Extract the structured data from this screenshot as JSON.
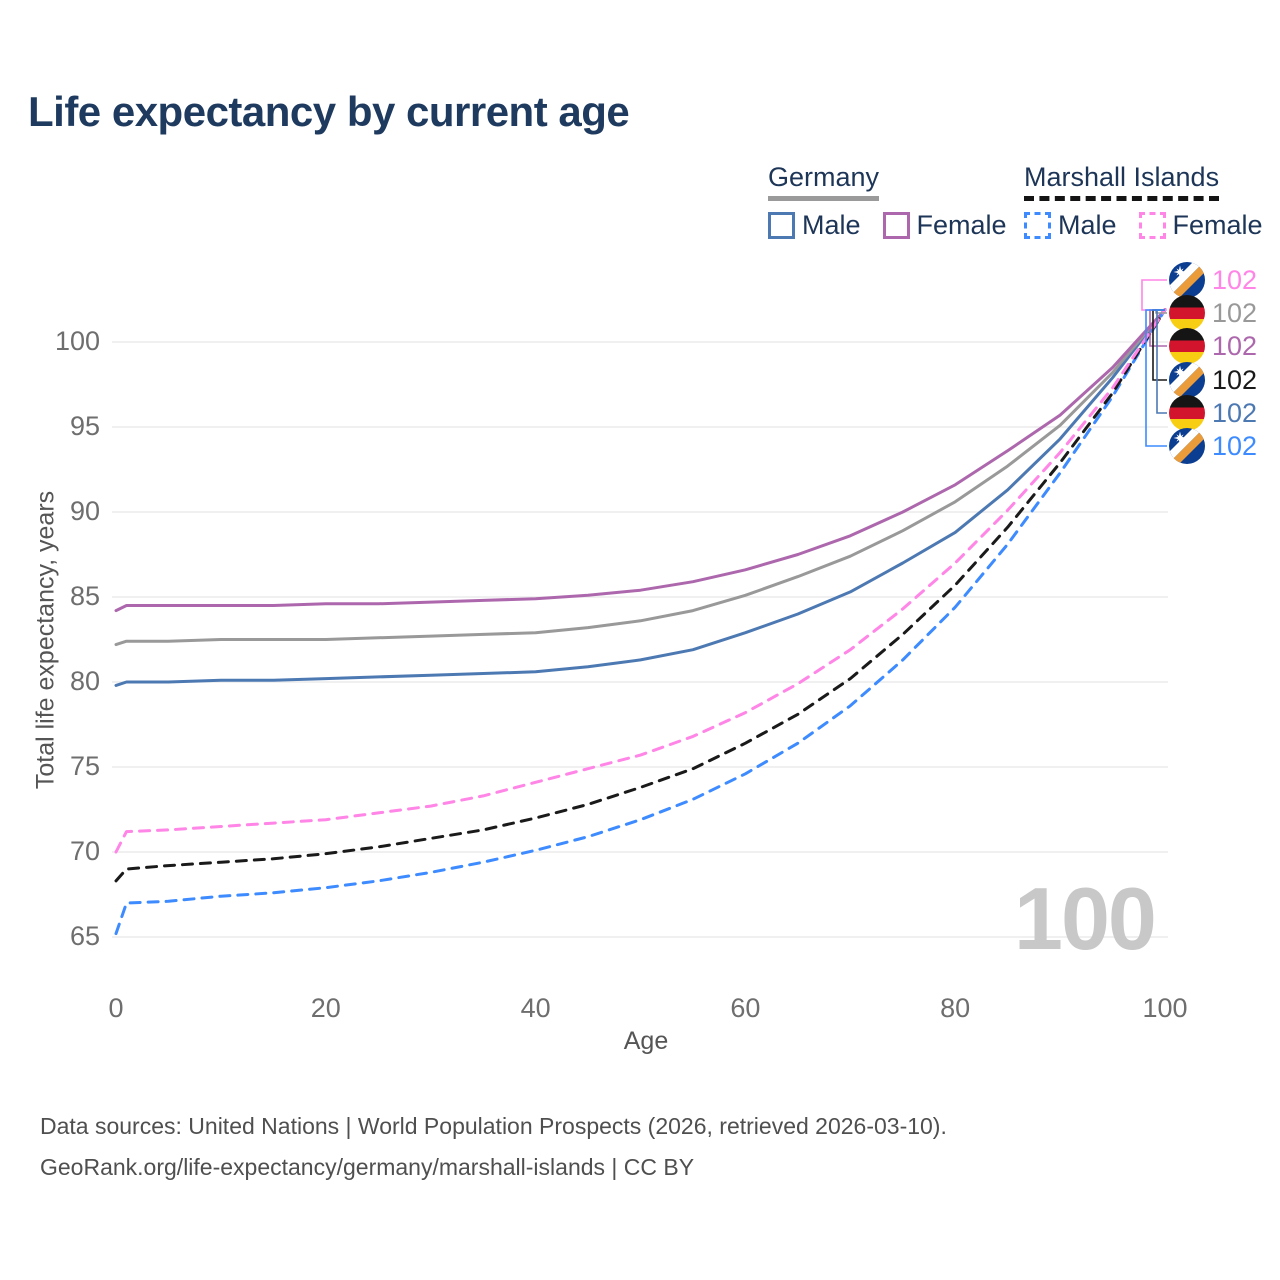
{
  "title": "Life expectancy by current age",
  "legend": {
    "groups": [
      {
        "label": "Germany",
        "line_style": "solid",
        "underline_color": "#9a9a9a",
        "items": [
          {
            "label": "Male",
            "color": "#4d79b3"
          },
          {
            "label": "Female",
            "color": "#ad68ad"
          }
        ]
      },
      {
        "label": "Marshall Islands",
        "line_style": "dashed",
        "underline_color": "#141414",
        "items": [
          {
            "label": "Male",
            "color": "#3d8bff"
          },
          {
            "label": "Female",
            "color": "#ff85e6"
          }
        ]
      }
    ]
  },
  "axes": {
    "x_label": "Age",
    "y_label": "Total life expectancy, years",
    "x_ticks": [
      0,
      20,
      40,
      60,
      80,
      100
    ],
    "y_ticks": [
      65,
      70,
      75,
      80,
      85,
      90,
      95,
      100
    ]
  },
  "watermark": "100",
  "end_labels": [
    {
      "country": "Marshall Islands",
      "series": "Female",
      "value": "102",
      "color": "#ff85e6",
      "flag": "mh"
    },
    {
      "country": "Germany",
      "series": "Both sexes",
      "value": "102",
      "color": "#999999",
      "flag": "de"
    },
    {
      "country": "Germany",
      "series": "Female",
      "value": "102",
      "color": "#ad68ad",
      "flag": "de"
    },
    {
      "country": "Marshall Islands",
      "series": "Both sexes",
      "value": "102",
      "color": "#1a1a1a",
      "flag": "mh"
    },
    {
      "country": "Germany",
      "series": "Male",
      "value": "102",
      "color": "#4d79b3",
      "flag": "de"
    },
    {
      "country": "Marshall Islands",
      "series": "Male",
      "value": "102",
      "color": "#3d8bff",
      "flag": "mh"
    }
  ],
  "footer": {
    "line1": "Data sources: United Nations | World Population Prospects (2026, retrieved 2026-03-10).",
    "line2": "GeoRank.org/life-expectancy/germany/marshall-islands | CC BY"
  },
  "chart_data": {
    "type": "line",
    "title": "Life expectancy by current age",
    "xlabel": "Age",
    "ylabel": "Total life expectancy, years",
    "xlim": [
      0,
      100
    ],
    "ylim": [
      63.5,
      103.5
    ],
    "grid": "horizontal",
    "legend_position": "top-right",
    "x": [
      0,
      1,
      5,
      10,
      15,
      20,
      25,
      30,
      35,
      40,
      45,
      50,
      55,
      60,
      65,
      70,
      75,
      80,
      85,
      90,
      95,
      100
    ],
    "series": [
      {
        "name": "Germany Male",
        "color": "#4d79b3",
        "dash": "solid",
        "values": [
          79.8,
          80.0,
          80.0,
          80.1,
          80.1,
          80.2,
          80.3,
          80.4,
          80.5,
          80.6,
          80.9,
          81.3,
          81.9,
          82.9,
          84.0,
          85.3,
          87.0,
          88.8,
          91.3,
          94.3,
          97.9,
          101.9
        ]
      },
      {
        "name": "Germany Both sexes",
        "color": "#999999",
        "dash": "solid",
        "values": [
          82.2,
          82.4,
          82.4,
          82.5,
          82.5,
          82.5,
          82.6,
          82.7,
          82.8,
          82.9,
          83.2,
          83.6,
          84.2,
          85.1,
          86.2,
          87.4,
          88.9,
          90.6,
          92.7,
          95.1,
          98.2,
          101.9
        ]
      },
      {
        "name": "Germany Female",
        "color": "#ad68ad",
        "dash": "solid",
        "values": [
          84.2,
          84.5,
          84.5,
          84.5,
          84.5,
          84.6,
          84.6,
          84.7,
          84.8,
          84.9,
          85.1,
          85.4,
          85.9,
          86.6,
          87.5,
          88.6,
          90.0,
          91.6,
          93.6,
          95.7,
          98.5,
          101.9
        ]
      },
      {
        "name": "Marshall Islands Male",
        "color": "#3d8bff",
        "dash": "dashed",
        "values": [
          65.2,
          67.0,
          67.1,
          67.4,
          67.6,
          67.9,
          68.3,
          68.8,
          69.4,
          70.1,
          70.9,
          71.9,
          73.1,
          74.6,
          76.4,
          78.6,
          81.3,
          84.4,
          88.1,
          92.3,
          96.8,
          101.9
        ]
      },
      {
        "name": "Marshall Islands Both sexes",
        "color": "#1a1a1a",
        "dash": "dashed",
        "values": [
          68.3,
          69.0,
          69.2,
          69.4,
          69.6,
          69.9,
          70.3,
          70.8,
          71.3,
          72.0,
          72.8,
          73.8,
          74.9,
          76.4,
          78.1,
          80.2,
          82.8,
          85.7,
          89.1,
          92.9,
          97.0,
          101.9
        ]
      },
      {
        "name": "Marshall Islands Female",
        "color": "#ff85e6",
        "dash": "dashed",
        "values": [
          70.0,
          71.2,
          71.3,
          71.5,
          71.7,
          71.9,
          72.3,
          72.7,
          73.3,
          74.1,
          74.9,
          75.7,
          76.8,
          78.2,
          79.9,
          81.9,
          84.3,
          87.0,
          90.1,
          93.5,
          97.3,
          101.9
        ]
      }
    ],
    "end_value_labels": [
      102,
      102,
      102,
      102,
      102,
      102
    ]
  }
}
